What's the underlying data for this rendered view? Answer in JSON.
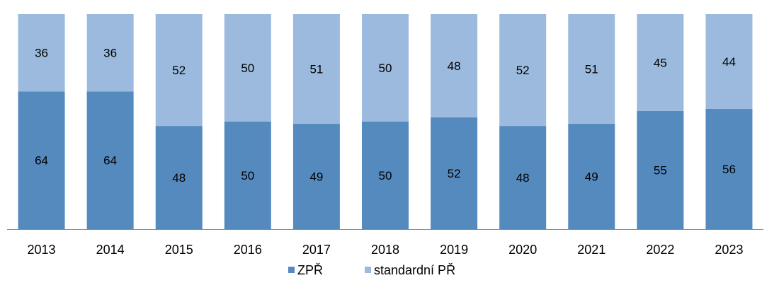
{
  "chart_data": {
    "type": "bar",
    "stacked": true,
    "normalized": true,
    "categories": [
      "2013",
      "2014",
      "2015",
      "2016",
      "2017",
      "2018",
      "2019",
      "2020",
      "2021",
      "2022",
      "2023"
    ],
    "series": [
      {
        "name": "ZPŘ",
        "color": "#558ABF",
        "values": [
          64,
          64,
          48,
          50,
          49,
          50,
          52,
          48,
          49,
          55,
          56
        ]
      },
      {
        "name": "standardní PŘ",
        "color": "#9BBADD",
        "values": [
          36,
          36,
          52,
          50,
          51,
          50,
          48,
          52,
          51,
          45,
          44
        ]
      }
    ],
    "ylim": [
      0,
      100
    ],
    "grid": false,
    "legend_position": "bottom"
  }
}
